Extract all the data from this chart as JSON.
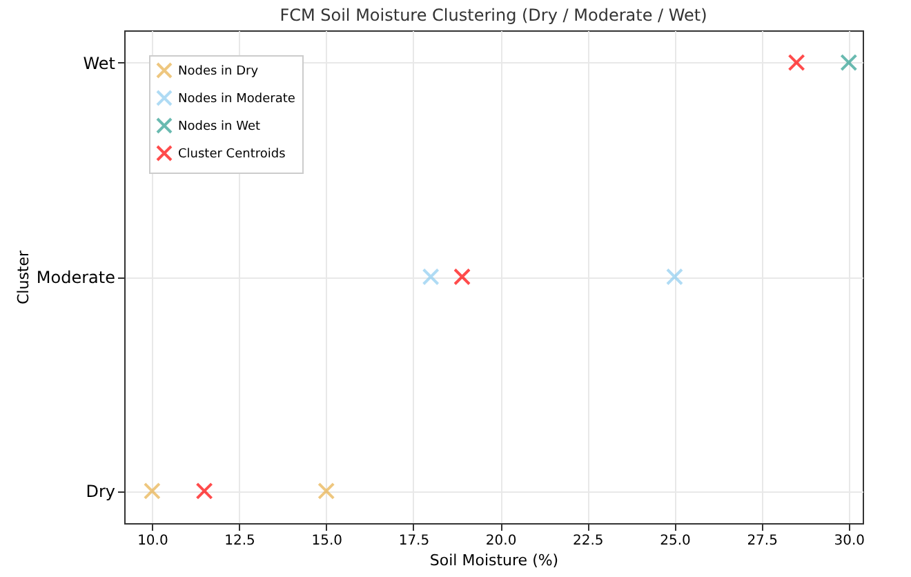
{
  "chart_data": {
    "type": "scatter",
    "orientation": "horizontal",
    "title": "FCM Soil Moisture Clustering (Dry / Moderate / Wet)",
    "xlabel": "Soil Moisture (%)",
    "ylabel": "Cluster",
    "categories": [
      "Wet",
      "Moderate",
      "Dry"
    ],
    "series": [
      {
        "name": "Nodes in Dry",
        "color": "#e8b04a",
        "values": [
          null,
          null,
          10
        ]
      },
      {
        "color": "#e8b04a",
        "values": [
          null,
          null,
          15
        ]
      },
      {
        "name": "Nodes in Moderate",
        "color": "#8ecdf0",
        "values": [
          null,
          18,
          null
        ]
      },
      {
        "color": "#8ecdf0",
        "values": [
          null,
          25,
          null
        ]
      },
      {
        "name": "Nodes in Wet",
        "color": "#2a9d8f",
        "values": [
          30,
          null,
          null
        ]
      },
      {
        "name": "Cluster Centroids",
        "color": "#ff0000",
        "values": [
          28.5,
          18.9,
          11.5
        ]
      }
    ],
    "xlim": [
      9.2,
      30.4
    ],
    "xticks": [
      {
        "value": 10,
        "label": "10.0"
      },
      {
        "value": 12.5,
        "label": "12.5"
      },
      {
        "value": 15,
        "label": "15.0"
      },
      {
        "value": 17.5,
        "label": "17.5"
      },
      {
        "value": 20,
        "label": "20.0"
      },
      {
        "value": 22.5,
        "label": "22.5"
      },
      {
        "value": 25,
        "label": "25.0"
      },
      {
        "value": 27.5,
        "label": "27.5"
      },
      {
        "value": 30,
        "label": "30.0"
      }
    ],
    "grid": true,
    "legend": "top left",
    "marker": "cross"
  }
}
